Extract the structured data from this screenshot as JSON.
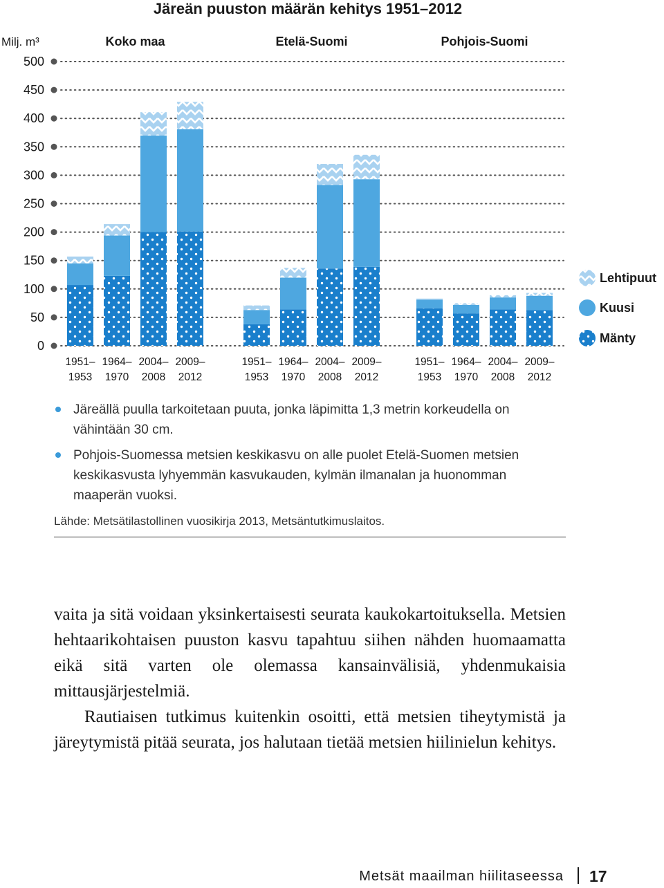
{
  "chart_data": {
    "type": "bar",
    "stacked": true,
    "title": "Järeän puuston määrän kehitys 1951–2012",
    "ylabel": "Milj. m³",
    "ylim": [
      0,
      500
    ],
    "yticks": [
      0,
      50,
      100,
      150,
      200,
      250,
      300,
      350,
      400,
      450,
      500
    ],
    "grid": true,
    "legend_position": "right",
    "groups": [
      {
        "name": "Koko maa",
        "categories": [
          "1951–\n1953",
          "1964–\n1970",
          "2004–\n2008",
          "2009–\n2012"
        ],
        "series": [
          {
            "name": "Mänty",
            "values": [
              107,
              123,
              200,
              201
            ]
          },
          {
            "name": "Kuusi",
            "values": [
              38,
              71,
              170,
              180
            ]
          },
          {
            "name": "Lehtipuut",
            "values": [
              12,
              20,
              41,
              48
            ]
          }
        ]
      },
      {
        "name": "Etelä-Suomi",
        "categories": [
          "1951–\n1953",
          "1964–\n1970",
          "2004–\n2008",
          "2009–\n2012"
        ],
        "series": [
          {
            "name": "Mänty",
            "values": [
              38,
              64,
              136,
              139
            ]
          },
          {
            "name": "Kuusi",
            "values": [
              25,
              56,
              147,
              154
            ]
          },
          {
            "name": "Lehtipuut",
            "values": [
              8,
              17,
              37,
              43
            ]
          }
        ]
      },
      {
        "name": "Pohjois-Suomi",
        "categories": [
          "1951–\n1953",
          "1964–\n1970",
          "2004–\n2008",
          "2009–\n2012"
        ],
        "series": [
          {
            "name": "Mänty",
            "values": [
              66,
              57,
              64,
              63
            ]
          },
          {
            "name": "Kuusi",
            "values": [
              15,
              15,
              21,
              25
            ]
          },
          {
            "name": "Lehtipuut",
            "values": [
              2,
              3,
              4,
              5
            ]
          }
        ]
      }
    ],
    "colors": {
      "Mänty": "#1a7fcc",
      "Kuusi": "#4ea7e0",
      "Lehtipuut": "#a9d2f0"
    },
    "legend": [
      "Lehtipuut",
      "Kuusi",
      "Mänty"
    ]
  },
  "notes": [
    "Järeällä puulla tarkoitetaan puuta, jonka läpimitta 1,3 metrin korkeudella on vähintään 30 cm.",
    "Pohjois-Suomessa metsien keskikasvu on alle puolet Etelä-Suomen metsien keskikasvusta lyhyemmän kasvukauden, kylmän ilmanalan ja huonomman maaperän vuoksi."
  ],
  "source": "Lähde: Metsätilastollinen vuosikirja 2013, Metsäntutkimuslaitos.",
  "body": {
    "p1": "vaita ja sitä voidaan yksinkertaisesti seurata kaukokartoituksella. Metsien hehtaarikohtaisen puuston kasvu tapahtuu siihen nähden huomaamatta eikä sitä varten ole olemassa kansainvälisiä, yhdenmukaisia mittausjärjestelmiä.",
    "p2": "Rautiaisen tutkimus kuitenkin osoitti, että metsien tiheytymistä ja järeytymistä pitää seurata, jos halutaan tietää metsien hiilinielun kehitys."
  },
  "footer": {
    "title": "Metsät maailman hiilitaseessa",
    "page": "17"
  }
}
